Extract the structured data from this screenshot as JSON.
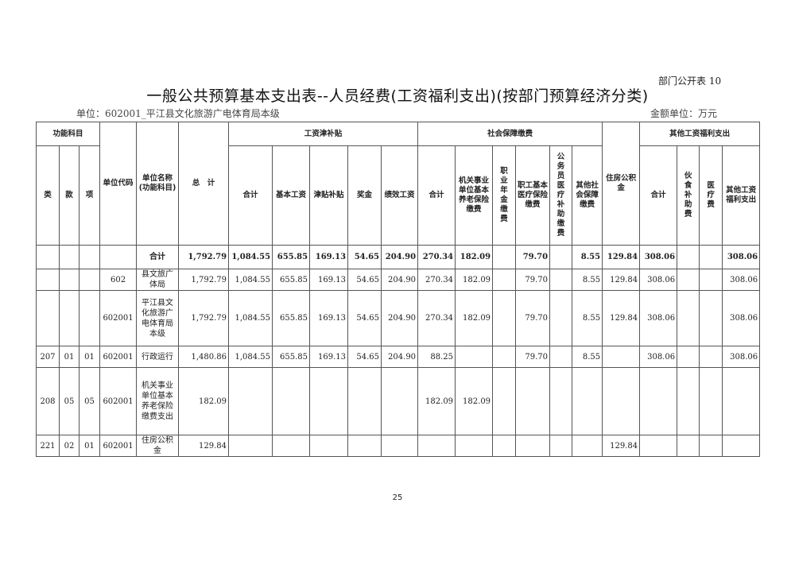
{
  "form_number": "部门公开表 10",
  "title": "一般公共预算基本支出表--人员经费(工资福利支出)(按部门预算经济分类)",
  "unit_label": "单位：602001_平江县文化旅游广电体育局本级",
  "money_unit": "金额单位：万元",
  "page_number": "25",
  "header": {
    "group_function": "功能科目",
    "lei": "类",
    "kuan": "款",
    "xiang": "项",
    "unit_code": "单位代码",
    "unit_name": "单位名称(功能科目)",
    "total": "总　计",
    "group_salary": "工资津补贴",
    "salary": [
      "合计",
      "基本工资",
      "津贴补贴",
      "奖金",
      "绩效工资"
    ],
    "group_social": "社会保障缴费",
    "social": [
      "合计",
      "机关事业单位基本养老保险缴费",
      "职业年金缴费",
      "职工基本医疗保险缴费",
      "公务员医疗补助缴费",
      "其他社会保障缴费"
    ],
    "housing": "住房公积金",
    "group_other": "其他工资福利支出",
    "other": [
      "合计",
      "伙食补助费",
      "医疗费",
      "其他工资福利支出"
    ]
  },
  "rows": [
    {
      "type": "total",
      "cells": [
        "",
        "",
        "",
        "",
        "合计",
        "1,792.79",
        "1,084.55",
        "655.85",
        "169.13",
        "54.65",
        "204.90",
        "270.34",
        "182.09",
        "",
        "79.70",
        "",
        "8.55",
        "129.84",
        "308.06",
        "",
        "",
        "308.06"
      ]
    },
    {
      "type": "data",
      "cells": [
        "",
        "",
        "",
        "602",
        "县文旅广体局",
        "1,792.79",
        "1,084.55",
        "655.85",
        "169.13",
        "54.65",
        "204.90",
        "270.34",
        "182.09",
        "",
        "79.70",
        "",
        "8.55",
        "129.84",
        "308.06",
        "",
        "",
        "308.06"
      ]
    },
    {
      "type": "data",
      "cells": [
        "",
        "",
        "",
        "602001",
        "平江县文化旅游广电体育局本级",
        "1,792.79",
        "1,084.55",
        "655.85",
        "169.13",
        "54.65",
        "204.90",
        "270.34",
        "182.09",
        "",
        "79.70",
        "",
        "8.55",
        "129.84",
        "308.06",
        "",
        "",
        "308.06"
      ]
    },
    {
      "type": "data",
      "cells": [
        "207",
        "01",
        "01",
        "602001",
        "行政运行",
        "1,480.86",
        "1,084.55",
        "655.85",
        "169.13",
        "54.65",
        "204.90",
        "88.25",
        "",
        "",
        "79.70",
        "",
        "8.55",
        "",
        "308.06",
        "",
        "",
        "308.06"
      ]
    },
    {
      "type": "data",
      "cells": [
        "208",
        "05",
        "05",
        "602001",
        "机关事业单位基本养老保险缴费支出",
        "182.09",
        "",
        "",
        "",
        "",
        "",
        "182.09",
        "182.09",
        "",
        "",
        "",
        "",
        "",
        "",
        "",
        "",
        ""
      ]
    },
    {
      "type": "data",
      "cells": [
        "221",
        "02",
        "01",
        "602001",
        "住房公积金",
        "129.84",
        "",
        "",
        "",
        "",
        "",
        "",
        "",
        "",
        "",
        "",
        "",
        "129.84",
        "",
        "",
        "",
        ""
      ]
    }
  ]
}
